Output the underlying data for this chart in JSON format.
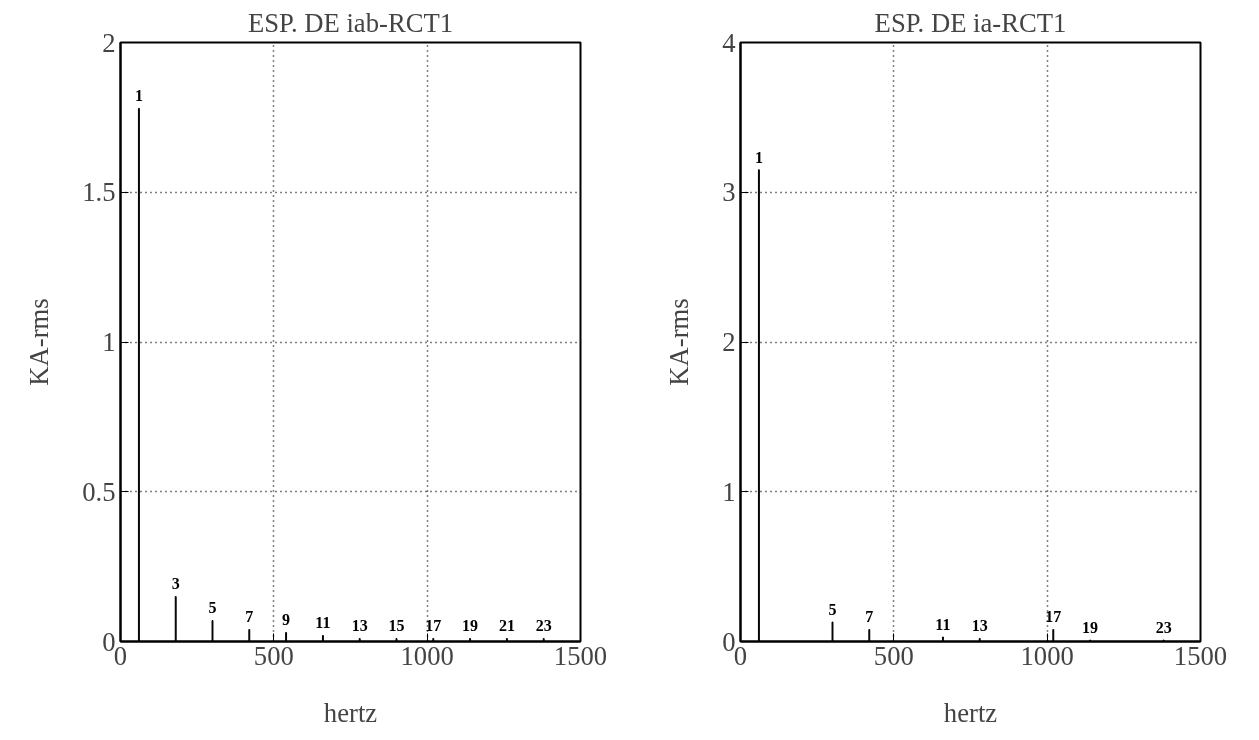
{
  "chart_data": [
    {
      "type": "bar",
      "title": "ESP. DE iab-RCT1",
      "xlabel": "hertz",
      "ylabel": "KA-rms",
      "color": "#000000",
      "x": [
        60,
        180,
        300,
        420,
        540,
        660,
        780,
        900,
        1020,
        1140,
        1260,
        1380
      ],
      "values": [
        1.78,
        0.15,
        0.07,
        0.04,
        0.03,
        0.02,
        0.01,
        0.01,
        0.01,
        0.01,
        0.01,
        0.01
      ],
      "annotations": [
        {
          "text": "1",
          "x": 60,
          "y": 1.78
        },
        {
          "text": "3",
          "x": 180,
          "y": 0.15
        },
        {
          "text": "5",
          "x": 300,
          "y": 0.07
        },
        {
          "text": "7",
          "x": 420,
          "y": 0.04
        },
        {
          "text": "9",
          "x": 540,
          "y": 0.03
        },
        {
          "text": "11",
          "x": 660,
          "y": 0.02
        },
        {
          "text": "13",
          "x": 780,
          "y": 0.01
        },
        {
          "text": "15",
          "x": 900,
          "y": 0.01
        },
        {
          "text": "17",
          "x": 1020,
          "y": 0.01
        },
        {
          "text": "19",
          "x": 1140,
          "y": 0.01
        },
        {
          "text": "21",
          "x": 1260,
          "y": 0.01
        },
        {
          "text": "23",
          "x": 1380,
          "y": 0.01
        }
      ],
      "xlim": [
        0,
        1500
      ],
      "xticks": [
        0,
        500,
        1000,
        1500
      ],
      "ylim": [
        0,
        2
      ],
      "yticks": [
        0,
        0.5,
        1,
        1.5,
        2
      ],
      "grid": true
    },
    {
      "type": "bar",
      "title": "ESP. DE ia-RCT1",
      "xlabel": "hertz",
      "ylabel": "KA-rms",
      "color": "#000000",
      "x": [
        60,
        300,
        420,
        660,
        780,
        1020,
        1140,
        1380
      ],
      "values": [
        3.15,
        0.13,
        0.08,
        0.03,
        0.02,
        0.08,
        0.01,
        0.01
      ],
      "annotations": [
        {
          "text": "1",
          "x": 60,
          "y": 3.15
        },
        {
          "text": "5",
          "x": 300,
          "y": 0.13
        },
        {
          "text": "7",
          "x": 420,
          "y": 0.08
        },
        {
          "text": "11",
          "x": 660,
          "y": 0.03
        },
        {
          "text": "13",
          "x": 780,
          "y": 0.02
        },
        {
          "text": "17",
          "x": 1020,
          "y": 0.08
        },
        {
          "text": "19",
          "x": 1140,
          "y": 0.01
        },
        {
          "text": "23",
          "x": 1380,
          "y": 0.01
        }
      ],
      "xlim": [
        0,
        1500
      ],
      "xticks": [
        0,
        500,
        1000,
        1500
      ],
      "ylim": [
        0,
        4
      ],
      "yticks": [
        0,
        1,
        2,
        3,
        4
      ],
      "grid": true
    }
  ]
}
